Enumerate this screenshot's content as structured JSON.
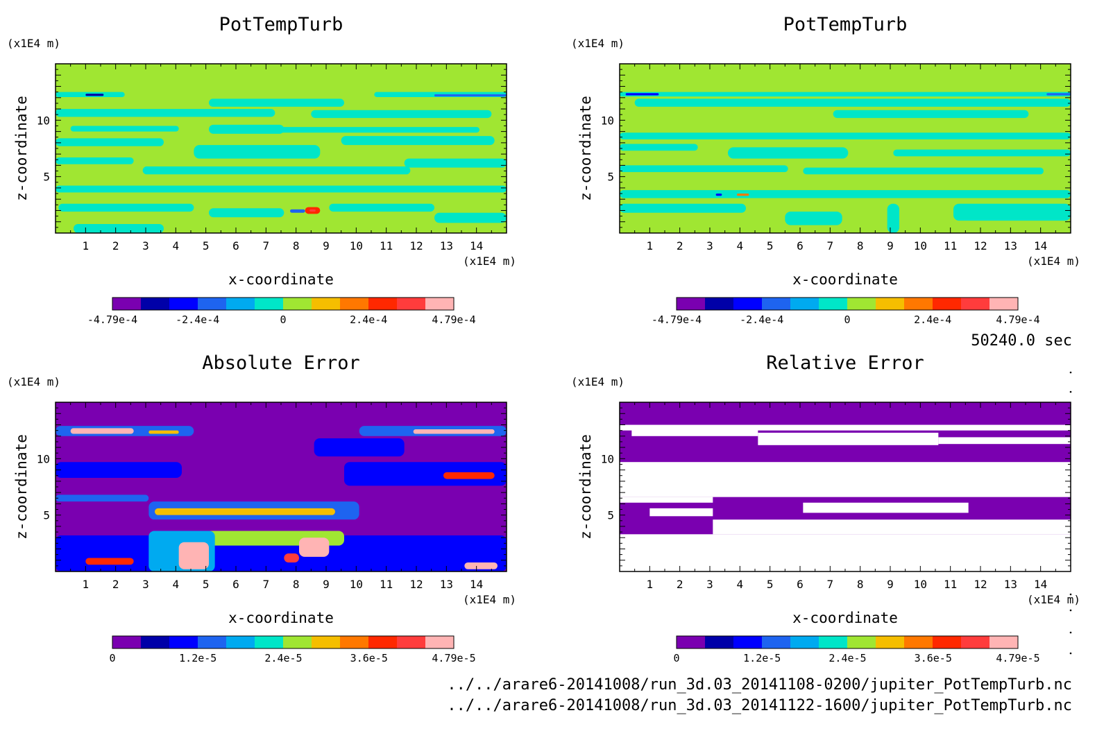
{
  "chart_data": [
    {
      "type": "heatmap",
      "title": "PotTempTurb",
      "xlabel": "x-coordinate",
      "ylabel": "z-coordinate",
      "x_unit": "(x1E4 m)",
      "y_unit": "(x1E4 m)",
      "xlim": [
        0,
        15
      ],
      "ylim": [
        0,
        15
      ],
      "x_ticks": [
        1,
        2,
        3,
        4,
        5,
        6,
        7,
        8,
        9,
        10,
        11,
        12,
        13,
        14
      ],
      "y_ticks": [
        5,
        10
      ],
      "colorbar": {
        "min": -0.000479,
        "max": 0.000479,
        "levels": 12,
        "tick_values": [
          -0.000479,
          -0.00024,
          0,
          0.00024,
          0.000479
        ],
        "tick_labels": [
          "-4.79e-4",
          "-2.4e-4",
          "0",
          "2.4e-4",
          "4.79e-4"
        ]
      },
      "background_level": 6,
      "patches": [
        {
          "x": [
            0,
            2.3
          ],
          "z": [
            12.05,
            12.5
          ],
          "level": 5
        },
        {
          "x": [
            1,
            1.6
          ],
          "z": [
            12.15,
            12.35
          ],
          "level": 1
        },
        {
          "x": [
            10.6,
            15
          ],
          "z": [
            12.05,
            12.5
          ],
          "level": 5
        },
        {
          "x": [
            12.6,
            15
          ],
          "z": [
            12.1,
            12.3
          ],
          "level": 3
        },
        {
          "x": [
            5.1,
            9.6
          ],
          "z": [
            11.2,
            11.9
          ],
          "level": 5
        },
        {
          "x": [
            0,
            7.3
          ],
          "z": [
            10.3,
            11.0
          ],
          "level": 5
        },
        {
          "x": [
            8.5,
            14.5
          ],
          "z": [
            10.2,
            10.9
          ],
          "level": 5
        },
        {
          "x": [
            0.5,
            4.1
          ],
          "z": [
            9.0,
            9.5
          ],
          "level": 5
        },
        {
          "x": [
            5.1,
            7.6
          ],
          "z": [
            8.8,
            9.6
          ],
          "level": 5
        },
        {
          "x": [
            7.4,
            14.1
          ],
          "z": [
            8.9,
            9.4
          ],
          "level": 5
        },
        {
          "x": [
            0,
            3.6
          ],
          "z": [
            7.7,
            8.4
          ],
          "level": 5
        },
        {
          "x": [
            4.6,
            8.8
          ],
          "z": [
            6.6,
            7.8
          ],
          "level": 5
        },
        {
          "x": [
            9.5,
            14.6
          ],
          "z": [
            7.8,
            8.6
          ],
          "level": 5
        },
        {
          "x": [
            0,
            2.6
          ],
          "z": [
            6.1,
            6.7
          ],
          "level": 5
        },
        {
          "x": [
            2.9,
            11.8
          ],
          "z": [
            5.2,
            5.9
          ],
          "level": 5
        },
        {
          "x": [
            11.6,
            15
          ],
          "z": [
            5.8,
            6.6
          ],
          "level": 5
        },
        {
          "x": [
            0,
            15
          ],
          "z": [
            3.6,
            4.2
          ],
          "level": 5
        },
        {
          "x": [
            0.1,
            4.6
          ],
          "z": [
            1.9,
            2.6
          ],
          "level": 5
        },
        {
          "x": [
            5.1,
            7.6
          ],
          "z": [
            1.4,
            2.2
          ],
          "level": 5
        },
        {
          "x": [
            9.1,
            12.6
          ],
          "z": [
            1.9,
            2.6
          ],
          "level": 5
        },
        {
          "x": [
            12.6,
            15
          ],
          "z": [
            0.9,
            1.8
          ],
          "level": 5
        },
        {
          "x": [
            0.6,
            3.6
          ],
          "z": [
            0,
            0.8
          ],
          "level": 5
        },
        {
          "x": [
            7.8,
            8.3
          ],
          "z": [
            1.8,
            2.1
          ],
          "level": 3
        },
        {
          "x": [
            8.3,
            8.8
          ],
          "z": [
            1.7,
            2.3
          ],
          "level": 9
        },
        {
          "x": [
            8.45,
            8.65
          ],
          "z": [
            1.9,
            2.1
          ],
          "level": 10
        }
      ]
    },
    {
      "type": "heatmap",
      "title": "PotTempTurb",
      "xlabel": "x-coordinate",
      "ylabel": "z-coordinate",
      "x_unit": "(x1E4 m)",
      "y_unit": "(x1E4 m)",
      "xlim": [
        0,
        15
      ],
      "ylim": [
        0,
        15
      ],
      "x_ticks": [
        1,
        2,
        3,
        4,
        5,
        6,
        7,
        8,
        9,
        10,
        11,
        12,
        13,
        14
      ],
      "y_ticks": [
        5,
        10
      ],
      "colorbar": {
        "min": -0.000479,
        "max": 0.000479,
        "levels": 12,
        "tick_values": [
          -0.000479,
          -0.00024,
          0,
          0.00024,
          0.000479
        ],
        "tick_labels": [
          "-4.79e-4",
          "-2.4e-4",
          "0",
          "2.4e-4",
          "4.79e-4"
        ]
      },
      "background_level": 6,
      "patches": [
        {
          "x": [
            0,
            15
          ],
          "z": [
            12.1,
            12.5
          ],
          "level": 5
        },
        {
          "x": [
            0.2,
            1.3
          ],
          "z": [
            12.2,
            12.4
          ],
          "level": 2
        },
        {
          "x": [
            14.2,
            15
          ],
          "z": [
            12.2,
            12.4
          ],
          "level": 3
        },
        {
          "x": [
            0.5,
            15
          ],
          "z": [
            11.2,
            11.9
          ],
          "level": 5
        },
        {
          "x": [
            7.1,
            13.6
          ],
          "z": [
            10.2,
            10.9
          ],
          "level": 5
        },
        {
          "x": [
            0,
            15
          ],
          "z": [
            8.3,
            8.9
          ],
          "level": 5
        },
        {
          "x": [
            0,
            2.6
          ],
          "z": [
            7.3,
            7.9
          ],
          "level": 5
        },
        {
          "x": [
            3.6,
            7.6
          ],
          "z": [
            6.6,
            7.6
          ],
          "level": 5
        },
        {
          "x": [
            9.1,
            15
          ],
          "z": [
            6.8,
            7.4
          ],
          "level": 5
        },
        {
          "x": [
            0,
            5.6
          ],
          "z": [
            5.4,
            6.0
          ],
          "level": 5
        },
        {
          "x": [
            6.1,
            14.1
          ],
          "z": [
            5.2,
            5.8
          ],
          "level": 5
        },
        {
          "x": [
            0,
            15
          ],
          "z": [
            3.1,
            3.8
          ],
          "level": 5
        },
        {
          "x": [
            0,
            4.2
          ],
          "z": [
            1.8,
            2.6
          ],
          "level": 5
        },
        {
          "x": [
            5.5,
            7.4
          ],
          "z": [
            0.7,
            1.9
          ],
          "level": 5
        },
        {
          "x": [
            8.9,
            9.3
          ],
          "z": [
            0,
            2.6
          ],
          "level": 5
        },
        {
          "x": [
            11.1,
            15
          ],
          "z": [
            1.1,
            2.6
          ],
          "level": 5
        },
        {
          "x": [
            3.2,
            3.4
          ],
          "z": [
            3.3,
            3.5
          ],
          "level": 2
        },
        {
          "x": [
            3.9,
            4.3
          ],
          "z": [
            3.3,
            3.5
          ],
          "level": 8
        }
      ]
    },
    {
      "type": "heatmap",
      "title": "Absolute Error",
      "xlabel": "x-coordinate",
      "ylabel": "z-coordinate",
      "x_unit": "(x1E4 m)",
      "y_unit": "(x1E4 m)",
      "xlim": [
        0,
        15
      ],
      "ylim": [
        0,
        15
      ],
      "x_ticks": [
        1,
        2,
        3,
        4,
        5,
        6,
        7,
        8,
        9,
        10,
        11,
        12,
        13,
        14
      ],
      "y_ticks": [
        5,
        10
      ],
      "colorbar": {
        "min": 0,
        "max": 4.79e-05,
        "levels": 12,
        "tick_values": [
          0,
          1.2e-05,
          2.4e-05,
          3.6e-05,
          4.79e-05
        ],
        "tick_labels": [
          "0",
          "1.2e-5",
          "2.4e-5",
          "3.6e-5",
          "4.79e-5"
        ]
      },
      "background_level": 0,
      "patches": [
        {
          "x": [
            0,
            4.6
          ],
          "z": [
            12.0,
            12.9
          ],
          "level": 3
        },
        {
          "x": [
            0.5,
            2.6
          ],
          "z": [
            12.2,
            12.7
          ],
          "level": 11
        },
        {
          "x": [
            3.1,
            4.1
          ],
          "z": [
            12.2,
            12.5
          ],
          "level": 7
        },
        {
          "x": [
            10.1,
            15
          ],
          "z": [
            12.0,
            12.9
          ],
          "level": 3
        },
        {
          "x": [
            11.9,
            14.6
          ],
          "z": [
            12.2,
            12.6
          ],
          "level": 11
        },
        {
          "x": [
            8.6,
            11.6
          ],
          "z": [
            10.2,
            11.8
          ],
          "level": 2
        },
        {
          "x": [
            0,
            4.2
          ],
          "z": [
            8.3,
            9.7
          ],
          "level": 2
        },
        {
          "x": [
            9.6,
            15
          ],
          "z": [
            7.6,
            9.7
          ],
          "level": 2
        },
        {
          "x": [
            12.9,
            14.6
          ],
          "z": [
            8.2,
            8.8
          ],
          "level": 9
        },
        {
          "x": [
            0,
            3.1
          ],
          "z": [
            6.2,
            6.8
          ],
          "level": 3
        },
        {
          "x": [
            3.1,
            10.1
          ],
          "z": [
            4.6,
            6.2
          ],
          "level": 3
        },
        {
          "x": [
            3.3,
            9.3
          ],
          "z": [
            5.0,
            5.6
          ],
          "level": 7
        },
        {
          "x": [
            0,
            15
          ],
          "z": [
            0,
            3.2
          ],
          "level": 2
        },
        {
          "x": [
            4.1,
            9.6
          ],
          "z": [
            2.3,
            3.6
          ],
          "level": 6
        },
        {
          "x": [
            3.1,
            5.3
          ],
          "z": [
            0,
            3.6
          ],
          "level": 4
        },
        {
          "x": [
            4.1,
            5.1
          ],
          "z": [
            0.2,
            2.6
          ],
          "level": 11
        },
        {
          "x": [
            8.1,
            9.1
          ],
          "z": [
            1.3,
            3.0
          ],
          "level": 11
        },
        {
          "x": [
            1.0,
            2.6
          ],
          "z": [
            0.6,
            1.2
          ],
          "level": 9
        },
        {
          "x": [
            7.6,
            8.1
          ],
          "z": [
            0.8,
            1.6
          ],
          "level": 10
        },
        {
          "x": [
            13.6,
            14.7
          ],
          "z": [
            0.2,
            0.8
          ],
          "level": 11
        }
      ]
    },
    {
      "type": "heatmap",
      "title": "Relative Error",
      "xlabel": "x-coordinate",
      "ylabel": "z-coordinate",
      "x_unit": "(x1E4 m)",
      "y_unit": "(x1E4 m)",
      "xlim": [
        0,
        15
      ],
      "ylim": [
        0,
        15
      ],
      "x_ticks": [
        1,
        2,
        3,
        4,
        5,
        6,
        7,
        8,
        9,
        10,
        11,
        12,
        13,
        14
      ],
      "y_ticks": [
        5,
        10
      ],
      "colorbar": {
        "min": 0,
        "max": 4.79e-05,
        "levels": 12,
        "tick_values": [
          0,
          1.2e-05,
          2.4e-05,
          3.6e-05,
          4.79e-05
        ],
        "tick_labels": [
          "0",
          "1.2e-5",
          "2.4e-5",
          "3.6e-5",
          "4.79e-5"
        ]
      },
      "background_level": 0,
      "white_regions": [
        {
          "x": [
            0,
            15
          ],
          "z": [
            12.5,
            13.0
          ]
        },
        {
          "x": [
            0.4,
            4.6
          ],
          "z": [
            12.0,
            12.6
          ]
        },
        {
          "x": [
            4.6,
            10.6
          ],
          "z": [
            11.2,
            12.3
          ]
        },
        {
          "x": [
            10.6,
            15
          ],
          "z": [
            11.3,
            11.9
          ]
        },
        {
          "x": [
            0,
            15
          ],
          "z": [
            6.6,
            9.7
          ]
        },
        {
          "x": [
            0,
            3.1
          ],
          "z": [
            6.1,
            6.6
          ]
        },
        {
          "x": [
            6.1,
            11.6
          ],
          "z": [
            5.2,
            6.1
          ]
        },
        {
          "x": [
            1.0,
            3.1
          ],
          "z": [
            4.9,
            5.6
          ]
        },
        {
          "x": [
            0,
            15
          ],
          "z": [
            0,
            3.3
          ]
        },
        {
          "x": [
            3.1,
            15
          ],
          "z": [
            3.3,
            4.6
          ]
        }
      ]
    }
  ],
  "annotations": {
    "time": "50240.0 sec",
    "files": [
      "../../arare6-20141008/run_3d.03_20141108-0200/jupiter_PotTempTurb.nc",
      "../../arare6-20141008/run_3d.03_20141122-1600/jupiter_PotTempTurb.nc"
    ]
  },
  "colors": {
    "palette": [
      "#7a00b0",
      "#0000a8",
      "#0000ff",
      "#1e64f0",
      "#00aaf0",
      "#00e6c8",
      "#a0e632",
      "#f5be00",
      "#ff7800",
      "#ff2800",
      "#ff3c3c",
      "#ffb4b4"
    ],
    "zero_band": "#a0e632"
  }
}
